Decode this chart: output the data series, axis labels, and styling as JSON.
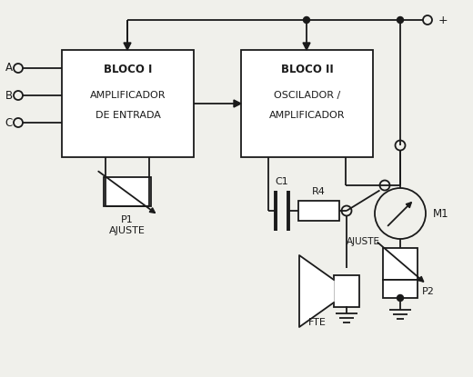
{
  "bg_color": "#f0f0eb",
  "lc": "#1a1a1a",
  "block1_label": [
    "BLOCO I",
    "AMPLIFICADOR",
    "DE ENTRADA"
  ],
  "block2_label": [
    "BLOCO II",
    "OSCILADOR /",
    "AMPLIFICADOR"
  ],
  "inputs": [
    "A",
    "B",
    "C"
  ],
  "p1_label": "P1",
  "p1_sub": "AJUSTE",
  "c1_label": "C1",
  "r4_label": "R4",
  "fte_label": "FTE",
  "m1_label": "M1",
  "p2_label": "P2",
  "p2_sub": "AJUSTE",
  "plus_label": "+"
}
